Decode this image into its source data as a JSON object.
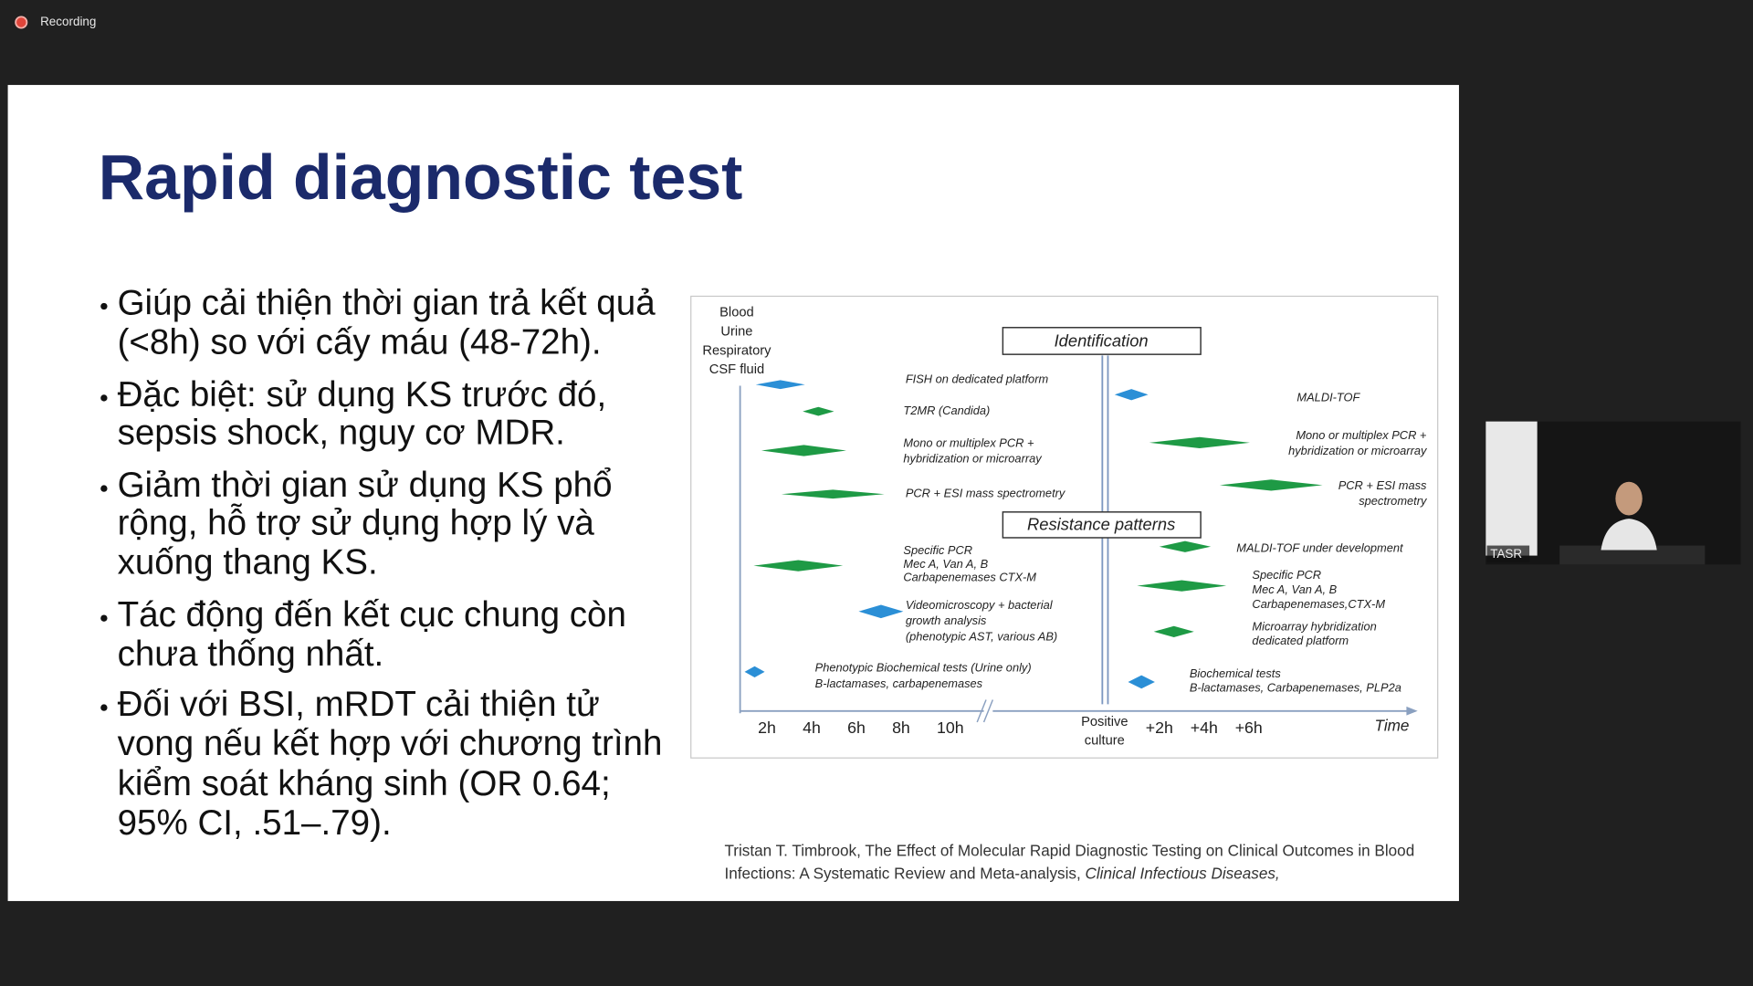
{
  "app": {
    "recording": "Recording",
    "participant": "TASR"
  },
  "slide": {
    "title": "Rapid diagnostic test",
    "bullets": [
      [
        "Giúp cải thiện thời gian trả kết quả",
        "(<8h) so với cấy máu (48-72h)."
      ],
      [
        "Đặc biệt: sử dụng KS trước đó,",
        "sepsis shock, nguy cơ MDR."
      ],
      [
        "Giảm thời gian sử dụng KS phổ",
        "rộng, hỗ trợ sử dụng hợp lý và",
        "xuống thang KS."
      ],
      [
        "Tác động đến kết cục chung còn",
        "chưa thống nhất."
      ],
      [
        "Đối với BSI, mRDT cải thiện tử",
        "vong nếu kết hợp với chương trình",
        "kiểm soát kháng sinh (OR 0.64;",
        "95% CI, .51–.79)."
      ]
    ],
    "figure": {
      "specimens": [
        "Blood",
        "Urine",
        "Respiratory",
        "CSF fluid"
      ],
      "identification": "Identification",
      "resistance": "Resistance patterns",
      "left_labels": [
        [
          "FISH on dedicated platform"
        ],
        [
          "T2MR (Candida)"
        ],
        [
          "Mono or multiplex PCR +",
          "hybridization or microarray"
        ],
        [
          "PCR + ESI mass spectrometry"
        ],
        [
          "Specific  PCR",
          "Mec A, Van A, B",
          "Carbapenemases CTX-M"
        ],
        [
          "Videomicroscopy + bacterial",
          "growth analysis",
          "(phenotypic AST, various AB)"
        ],
        [
          "Phenotypic Biochemical tests (Urine only)",
          "B-lactamases, carbapenemases"
        ]
      ],
      "right_labels": [
        [
          "MALDI-TOF"
        ],
        [
          "Mono or multiplex PCR +",
          "hybridization or microarray"
        ],
        [
          "PCR + ESI mass",
          "spectrometry"
        ],
        [
          "MALDI-TOF under development"
        ],
        [
          "Specific PCR",
          "Mec A,  Van A, B",
          "Carbapenemases,CTX-M"
        ],
        [
          "Microarray hybridization",
          "dedicated platform"
        ],
        [
          "Biochemical tests",
          "B-lactamases, Carbapenemases, PLP2a"
        ]
      ],
      "time_before": [
        "2h",
        "4h",
        "6h",
        "8h",
        "10h"
      ],
      "positive_culture": [
        "Positive",
        "culture"
      ],
      "time_after": [
        "+2h",
        "+4h",
        "+6h"
      ],
      "axis_label": "Time"
    },
    "citation": {
      "line1": "Tristan T. Timbrook, The Effect of Molecular Rapid Diagnostic Testing on Clinical Outcomes in Blood",
      "line2": "Infections: A Systematic Review and Meta-analysis, ",
      "journal": "Clinical Infectious Diseases,"
    }
  }
}
